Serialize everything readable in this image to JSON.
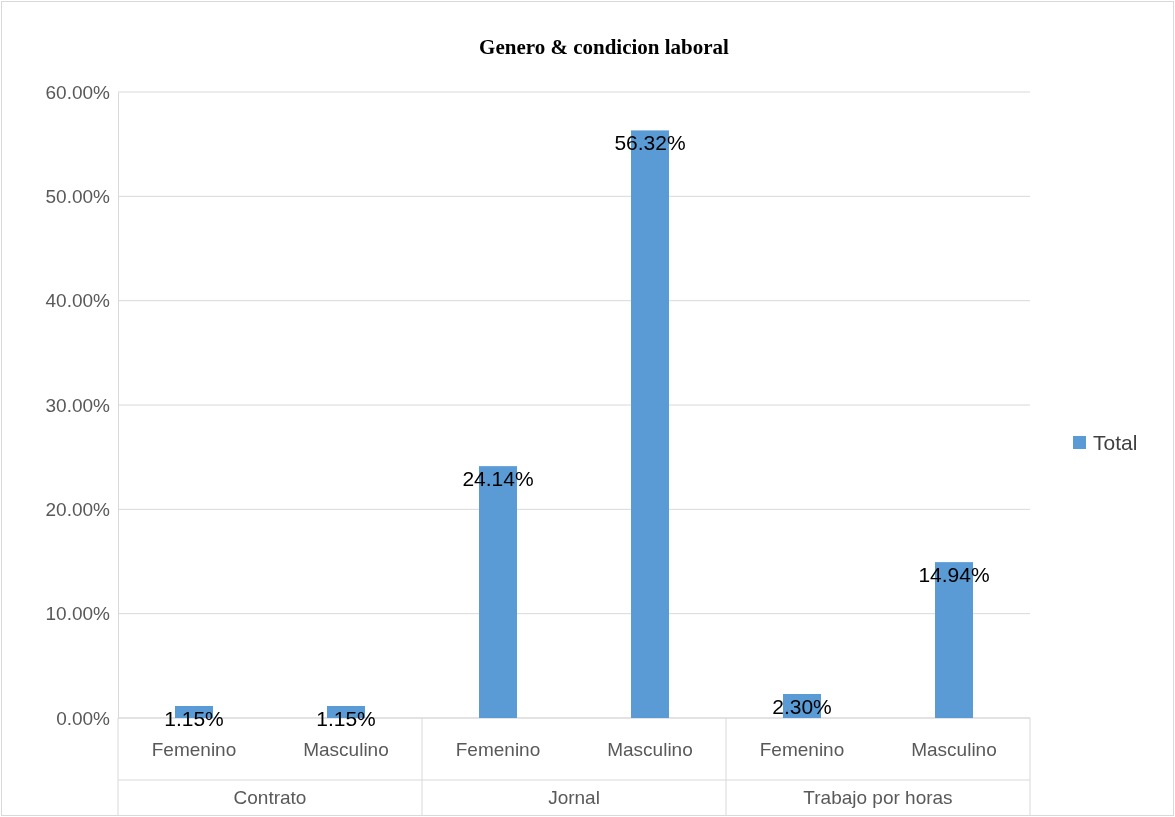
{
  "chart_data": {
    "type": "bar",
    "title": "Genero & condicion laboral",
    "categories": [
      "Femenino",
      "Masculino",
      "Femenino",
      "Masculino",
      "Femenino",
      "Masculino"
    ],
    "series": [
      {
        "name": "Total",
        "color": "#5b9bd5",
        "values": [
          1.15,
          1.15,
          24.14,
          56.32,
          2.3,
          14.94
        ],
        "value_labels": [
          "1.15%",
          "1.15%",
          "24.14%",
          "56.32%",
          "2.30%",
          "14.94%"
        ]
      }
    ],
    "annotations": [
      "Contrato",
      "Jornal",
      "Trabajo por horas"
    ],
    "ylim": [
      0,
      60
    ],
    "yticks": [
      {
        "value": 0,
        "label": "0.00%"
      },
      {
        "value": 10,
        "label": "10.00%"
      },
      {
        "value": 20,
        "label": "20.00%"
      },
      {
        "value": 30,
        "label": "30.00%"
      },
      {
        "value": 40,
        "label": "40.00%"
      },
      {
        "value": 50,
        "label": "50.00%"
      },
      {
        "value": 60,
        "label": "60.00%"
      }
    ],
    "grid": "y",
    "legend": "right"
  }
}
